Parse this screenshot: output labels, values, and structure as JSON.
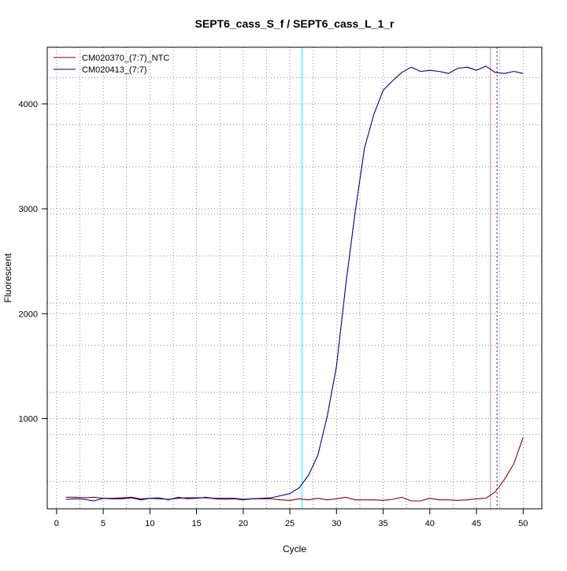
{
  "chart_data": {
    "type": "line",
    "title": "SEPT6_cass_S_f / SEPT6_cass_L_1_r",
    "xlabel": "Cycle",
    "ylabel": "Fluorescent",
    "xlim": [
      -1.0,
      52.0
    ],
    "ylim": [
      140,
      4540
    ],
    "x_ticks": [
      0,
      5,
      10,
      15,
      20,
      25,
      30,
      35,
      40,
      45,
      50
    ],
    "y_ticks": [
      1000,
      2000,
      3000,
      4000
    ],
    "grid": {
      "vertical": [
        2.5,
        7.5,
        12.5,
        17.5,
        22.5,
        27.5,
        32.5,
        37.5,
        42.5,
        47.5
      ],
      "horizontal": [
        400,
        850,
        1250,
        1700,
        2100,
        2550,
        2950,
        3400,
        3800,
        4250
      ]
    },
    "legend_position": "top-left",
    "vlines": [
      {
        "x": 26.3,
        "color": "#00ffff",
        "style": "solid"
      },
      {
        "x": 46.5,
        "color": "#d48a8a",
        "style": "solid"
      },
      {
        "x": 47.2,
        "color": "#1a1a8c",
        "style": "dotted"
      }
    ],
    "x": [
      1,
      2,
      3,
      4,
      5,
      6,
      7,
      8,
      9,
      10,
      11,
      12,
      13,
      14,
      15,
      16,
      17,
      18,
      19,
      20,
      21,
      22,
      23,
      24,
      25,
      26,
      27,
      28,
      29,
      30,
      31,
      32,
      33,
      34,
      35,
      36,
      37,
      38,
      39,
      40,
      41,
      42,
      43,
      44,
      45,
      46,
      47,
      48,
      49,
      50
    ],
    "series": [
      {
        "name": "CM020370_(7:7)_NTC",
        "color": "#8b0000",
        "values": [
          250,
          250,
          245,
          250,
          240,
          240,
          245,
          250,
          235,
          240,
          245,
          225,
          250,
          235,
          240,
          250,
          235,
          230,
          235,
          225,
          235,
          235,
          235,
          225,
          220,
          235,
          225,
          240,
          225,
          235,
          250,
          225,
          225,
          225,
          220,
          230,
          250,
          215,
          215,
          240,
          225,
          225,
          220,
          225,
          235,
          240,
          300,
          420,
          570,
          820
        ]
      },
      {
        "name": "CM020413_(7:7)",
        "color": "#00008b",
        "values": [
          230,
          235,
          230,
          215,
          240,
          235,
          235,
          245,
          225,
          240,
          235,
          230,
          240,
          245,
          245,
          245,
          240,
          240,
          240,
          230,
          235,
          240,
          245,
          265,
          285,
          340,
          460,
          650,
          1020,
          1500,
          2280,
          2970,
          3580,
          3900,
          4130,
          4220,
          4300,
          4350,
          4310,
          4320,
          4310,
          4290,
          4340,
          4350,
          4320,
          4360,
          4300,
          4290,
          4310,
          4290
        ]
      }
    ]
  }
}
